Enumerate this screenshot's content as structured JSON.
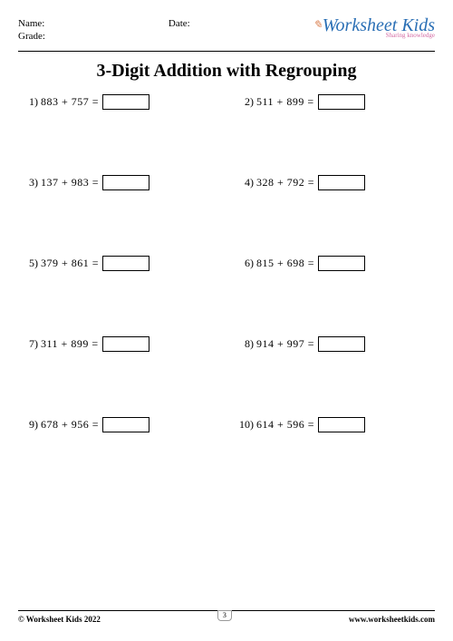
{
  "header": {
    "name_label": "Name:",
    "grade_label": "Grade:",
    "date_label": "Date:",
    "logo_main": "Worksheet Kids",
    "logo_sub": "Sharing knowledge"
  },
  "title": "3-Digit Addition with Regrouping",
  "problems": [
    {
      "num": "1)",
      "a": "883",
      "b": "757"
    },
    {
      "num": "2)",
      "a": "511",
      "b": "899"
    },
    {
      "num": "3)",
      "a": "137",
      "b": "983"
    },
    {
      "num": "4)",
      "a": "328",
      "b": "792"
    },
    {
      "num": "5)",
      "a": "379",
      "b": "861"
    },
    {
      "num": "6)",
      "a": "815",
      "b": "698"
    },
    {
      "num": "7)",
      "a": "311",
      "b": "899"
    },
    {
      "num": "8)",
      "a": "914",
      "b": "997"
    },
    {
      "num": "9)",
      "a": "678",
      "b": "956"
    },
    {
      "num": "10)",
      "a": "614",
      "b": "596"
    }
  ],
  "footer": {
    "copyright": "© Worksheet Kids 2022",
    "page_number": "3",
    "url": "www.worksheetkids.com"
  },
  "colors": {
    "logo_blue": "#2a6fb5",
    "logo_pink": "#d46aa3",
    "pencil": "#d97b4a"
  }
}
